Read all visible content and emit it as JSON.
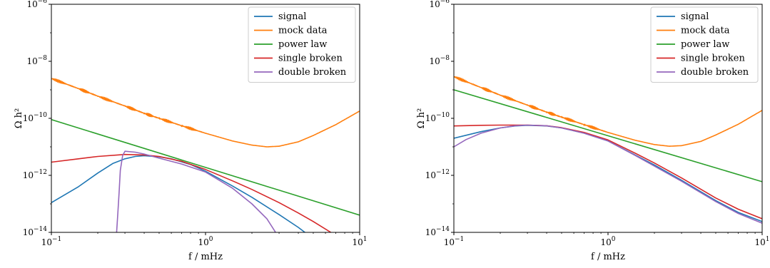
{
  "chart_data": [
    {
      "type": "line",
      "xscale": "log",
      "yscale": "log",
      "xlim": [
        0.1,
        10
      ],
      "ylim": [
        1e-14,
        1e-06
      ],
      "xlabel": "f   / mHz",
      "ylabel": "Ω h²",
      "x_ticks": [
        {
          "value": 0.1,
          "base": "10",
          "exp": "−1"
        },
        {
          "value": 1,
          "base": "10",
          "exp": "0"
        },
        {
          "value": 10,
          "base": "10",
          "exp": "1"
        }
      ],
      "y_ticks": [
        {
          "value": 1e-14,
          "base": "10",
          "exp": "−14"
        },
        {
          "value": 1e-12,
          "base": "10",
          "exp": "−12"
        },
        {
          "value": 1e-10,
          "base": "10",
          "exp": "−10"
        },
        {
          "value": 1e-08,
          "base": "10",
          "exp": "−8"
        },
        {
          "value": 1e-06,
          "base": "10",
          "exp": "−6"
        }
      ],
      "grid": false,
      "legend": "top-right",
      "series": [
        {
          "name": "signal",
          "color": "#1f77b4",
          "x": [
            0.1,
            0.15,
            0.2,
            0.25,
            0.3,
            0.35,
            0.4,
            0.5,
            0.6,
            0.8,
            1.0,
            1.5,
            2.0,
            3.0,
            4.0,
            5.0
          ],
          "y": [
            1.1e-13,
            4e-13,
            1.2e-12,
            2.6e-12,
            3.8e-12,
            4.6e-12,
            4.9e-12,
            4.5e-12,
            3.8e-12,
            2.4e-12,
            1.4e-12,
            4.2e-13,
            1.7e-13,
            4.2e-14,
            1.5e-14,
            6e-15
          ]
        },
        {
          "name": "mock data",
          "color": "#ff7f0e",
          "x": [
            0.1,
            0.15,
            0.2,
            0.3,
            0.4,
            0.5,
            0.7,
            1.0,
            1.5,
            2.0,
            2.5,
            3.0,
            4.0,
            5.0,
            7.0,
            10.0
          ],
          "y": [
            2.5e-09,
            1.1e-09,
            6e-10,
            2.7e-10,
            1.5e-10,
            1e-10,
            5.5e-11,
            3e-11,
            1.6e-11,
            1.15e-11,
            1e-11,
            1.05e-11,
            1.5e-11,
            2.5e-11,
            6e-11,
            1.8e-10
          ]
        },
        {
          "name": "power law",
          "color": "#2ca02c",
          "x": [
            0.1,
            10
          ],
          "y": [
            9e-11,
            4e-14
          ]
        },
        {
          "name": "single broken",
          "color": "#d62728",
          "x": [
            0.1,
            0.15,
            0.2,
            0.3,
            0.4,
            0.5,
            0.7,
            1.0,
            1.5,
            2.0,
            3.0,
            4.0,
            5.0,
            6.5
          ],
          "y": [
            2.9e-12,
            3.8e-12,
            4.6e-12,
            5.4e-12,
            5.2e-12,
            4.6e-12,
            3.1e-12,
            1.6e-12,
            6.4e-13,
            3.2e-13,
            1.1e-13,
            4.8e-14,
            2.4e-14,
            1e-14
          ]
        },
        {
          "name": "double broken",
          "color": "#9467bd",
          "x": [
            0.265,
            0.27,
            0.275,
            0.28,
            0.29,
            0.3,
            0.35,
            0.4,
            0.5,
            0.7,
            1.0,
            1.5,
            2.0,
            2.5,
            2.85
          ],
          "y": [
            1e-14,
            5e-14,
            2.5e-13,
            1.5e-12,
            5e-12,
            7e-12,
            6.5e-12,
            5.6e-12,
            4e-12,
            2.5e-12,
            1.3e-12,
            3.5e-13,
            1e-13,
            3e-14,
            1e-14
          ]
        }
      ]
    },
    {
      "type": "line",
      "xscale": "log",
      "yscale": "log",
      "xlim": [
        0.1,
        10
      ],
      "ylim": [
        1e-14,
        1e-06
      ],
      "xlabel": "f   / mHz",
      "ylabel": "Ω h²",
      "x_ticks": [
        {
          "value": 0.1,
          "base": "10",
          "exp": "−1"
        },
        {
          "value": 1,
          "base": "10",
          "exp": "0"
        },
        {
          "value": 10,
          "base": "10",
          "exp": "1"
        }
      ],
      "y_ticks": [
        {
          "value": 1e-14,
          "base": "10",
          "exp": "−14"
        },
        {
          "value": 1e-12,
          "base": "10",
          "exp": "−12"
        },
        {
          "value": 1e-10,
          "base": "10",
          "exp": "−10"
        },
        {
          "value": 1e-08,
          "base": "10",
          "exp": "−8"
        },
        {
          "value": 1e-06,
          "base": "10",
          "exp": "−6"
        }
      ],
      "grid": false,
      "legend": "top-right",
      "series": [
        {
          "name": "signal",
          "color": "#1f77b4",
          "x": [
            0.1,
            0.15,
            0.2,
            0.25,
            0.3,
            0.4,
            0.5,
            0.7,
            1.0,
            1.5,
            2.0,
            3.0,
            5.0,
            7.0,
            10.0
          ],
          "y": [
            2e-11,
            3.4e-11,
            4.6e-11,
            5.4e-11,
            5.7e-11,
            5.4e-11,
            4.6e-11,
            3e-11,
            1.6e-11,
            5.2e-12,
            2.3e-12,
            6.7e-13,
            1.3e-13,
            5e-14,
            2.4e-14
          ]
        },
        {
          "name": "mock data",
          "color": "#ff7f0e",
          "x": [
            0.1,
            0.15,
            0.2,
            0.3,
            0.4,
            0.5,
            0.7,
            1.0,
            1.5,
            2.0,
            2.5,
            3.0,
            4.0,
            5.0,
            7.0,
            10.0
          ],
          "y": [
            2.9e-09,
            1.2e-09,
            6.5e-10,
            2.9e-10,
            1.65e-10,
            1.1e-10,
            6e-11,
            3.2e-11,
            1.7e-11,
            1.2e-11,
            1.05e-11,
            1.1e-11,
            1.55e-11,
            2.6e-11,
            6.2e-11,
            1.9e-10
          ]
        },
        {
          "name": "power law",
          "color": "#2ca02c",
          "x": [
            0.1,
            10
          ],
          "y": [
            1e-09,
            6e-13
          ]
        },
        {
          "name": "single broken",
          "color": "#d62728",
          "x": [
            0.1,
            0.15,
            0.2,
            0.3,
            0.4,
            0.5,
            0.7,
            1.0,
            1.5,
            2.0,
            3.0,
            5.0,
            7.0,
            10.0
          ],
          "y": [
            5.4e-11,
            5.7e-11,
            5.8e-11,
            5.8e-11,
            5.5e-11,
            4.7e-11,
            3.2e-11,
            1.75e-11,
            6e-12,
            2.7e-12,
            8.1e-13,
            1.6e-13,
            6.5e-14,
            3e-14
          ]
        },
        {
          "name": "double broken",
          "color": "#9467bd",
          "x": [
            0.1,
            0.12,
            0.15,
            0.2,
            0.25,
            0.3,
            0.4,
            0.5,
            0.7,
            1.0,
            1.5,
            2.0,
            3.0,
            5.0,
            7.0,
            10.0
          ],
          "y": [
            1e-11,
            1.8e-11,
            3e-11,
            4.6e-11,
            5.5e-11,
            5.8e-11,
            5.5e-11,
            4.6e-11,
            3e-11,
            1.6e-11,
            5e-12,
            2.1e-12,
            6.2e-13,
            1.2e-13,
            4.6e-14,
            2.1e-14
          ]
        }
      ]
    }
  ]
}
